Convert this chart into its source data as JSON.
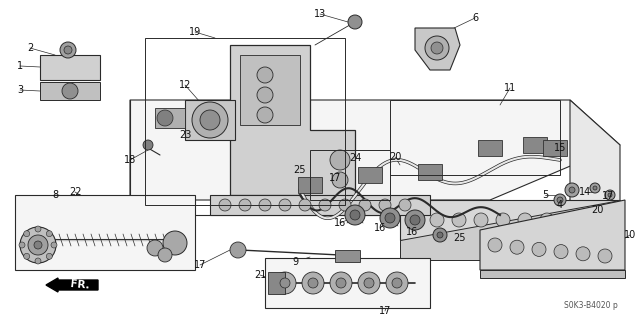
{
  "fig_width": 6.4,
  "fig_height": 3.19,
  "dpi": 100,
  "bg_color": "#ffffff",
  "line_color": "#2a2a2a",
  "watermark": "S0K3-B4020 p",
  "fr_label": "FR."
}
